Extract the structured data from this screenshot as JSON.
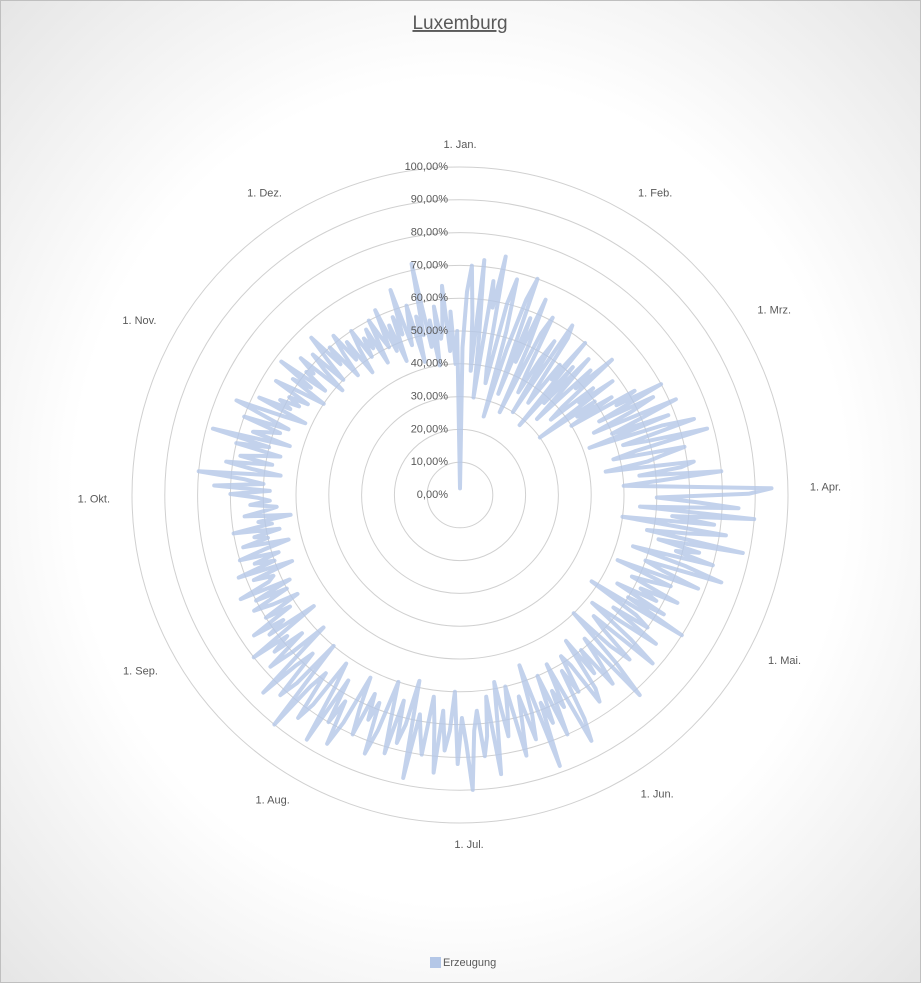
{
  "chart_data": {
    "type": "radar",
    "title": "Luxemburg",
    "categories": [
      "1. Jan.",
      null,
      null,
      null,
      null,
      null,
      null,
      null,
      null,
      null,
      null,
      null,
      null,
      null,
      null,
      null,
      null,
      null,
      null,
      null,
      null,
      null,
      null,
      null,
      null,
      null,
      null,
      null,
      null,
      null,
      null,
      "1. Feb.",
      null,
      null,
      null,
      null,
      null,
      null,
      null,
      null,
      null,
      null,
      null,
      null,
      null,
      null,
      null,
      null,
      null,
      null,
      null,
      null,
      null,
      null,
      null,
      null,
      null,
      null,
      null,
      "1. Mrz.",
      null,
      null,
      null,
      null,
      null,
      null,
      null,
      null,
      null,
      null,
      null,
      null,
      null,
      null,
      null,
      null,
      null,
      null,
      null,
      null,
      null,
      null,
      null,
      null,
      null,
      null,
      null,
      null,
      null,
      null,
      "1. Apr.",
      null,
      null,
      null,
      null,
      null,
      null,
      null,
      null,
      null,
      null,
      null,
      null,
      null,
      null,
      null,
      null,
      null,
      null,
      null,
      null,
      null,
      null,
      null,
      null,
      null,
      null,
      null,
      null,
      null,
      "1. Mai.",
      null,
      null,
      null,
      null,
      null,
      null,
      null,
      null,
      null,
      null,
      null,
      null,
      null,
      null,
      null,
      null,
      null,
      null,
      null,
      null,
      null,
      null,
      null,
      null,
      null,
      null,
      null,
      null,
      null,
      null,
      "1. Jun.",
      null,
      null,
      null,
      null,
      null,
      null,
      null,
      null,
      null,
      null,
      null,
      null,
      null,
      null,
      null,
      null,
      null,
      null,
      null,
      null,
      null,
      null,
      null,
      null,
      null,
      null,
      null,
      null,
      null,
      "1. Jul.",
      null,
      null,
      null,
      null,
      null,
      null,
      null,
      null,
      null,
      null,
      null,
      null,
      null,
      null,
      null,
      null,
      null,
      null,
      null,
      null,
      null,
      null,
      null,
      null,
      null,
      null,
      null,
      null,
      null,
      null,
      "1. Aug.",
      null,
      null,
      null,
      null,
      null,
      null,
      null,
      null,
      null,
      null,
      null,
      null,
      null,
      null,
      null,
      null,
      null,
      null,
      null,
      null,
      null,
      null,
      null,
      null,
      null,
      null,
      null,
      null,
      null,
      null,
      "1. Sep.",
      null,
      null,
      null,
      null,
      null,
      null,
      null,
      null,
      null,
      null,
      null,
      null,
      null,
      null,
      null,
      null,
      null,
      null,
      null,
      null,
      null,
      null,
      null,
      null,
      null,
      null,
      null,
      null,
      null,
      "1. Okt.",
      null,
      null,
      null,
      null,
      null,
      null,
      null,
      null,
      null,
      null,
      null,
      null,
      null,
      null,
      null,
      null,
      null,
      null,
      null,
      null,
      null,
      null,
      null,
      null,
      null,
      null,
      null,
      null,
      null,
      null,
      "1. Nov.",
      null,
      null,
      null,
      null,
      null,
      null,
      null,
      null,
      null,
      null,
      null,
      null,
      null,
      null,
      null,
      null,
      null,
      null,
      null,
      null,
      null,
      null,
      null,
      null,
      null,
      null,
      null,
      null,
      null,
      "1. Dez.",
      null,
      null,
      null,
      null,
      null,
      null,
      null,
      null,
      null,
      null,
      null,
      null,
      null,
      null,
      null,
      null,
      null,
      null,
      null,
      null,
      null,
      null,
      null,
      null,
      null,
      null,
      null,
      null,
      null,
      null
    ],
    "series": [
      {
        "name": "Erzeugung",
        "color": "#b4c7e7",
        "values": [
          2,
          45,
          62,
          70,
          55,
          38,
          72,
          48,
          30,
          66,
          58,
          74,
          40,
          35,
          60,
          68,
          52,
          25,
          47,
          63,
          70,
          33,
          58,
          44,
          65,
          50,
          28,
          55,
          61,
          42,
          36,
          48,
          55,
          30,
          62,
          58,
          40,
          35,
          50,
          45,
          60,
          28,
          52,
          38,
          57,
          44,
          33,
          55,
          48,
          62,
          41,
          36,
          52,
          46,
          58,
          30,
          50,
          43,
          55,
          40,
          62,
          55,
          70,
          48,
          66,
          58,
          45,
          72,
          60,
          50,
          68,
          42,
          65,
          75,
          52,
          60,
          78,
          55,
          48,
          70,
          63,
          58,
          45,
          72,
          68,
          55,
          80,
          62,
          50,
          66,
          95,
          88,
          60,
          72,
          85,
          55,
          90,
          65,
          78,
          50,
          82,
          70,
          58,
          88,
          62,
          75,
          68,
          80,
          55,
          72,
          84,
          60,
          66,
          78,
          52,
          70,
          64,
          58,
          74,
          62,
          68,
          55,
          72,
          60,
          80,
          48,
          65,
          70,
          58,
          75,
          62,
          52,
          68,
          78,
          55,
          60,
          72,
          65,
          50,
          70,
          82,
          58,
          66,
          74,
          60,
          68,
          55,
          72,
          76,
          62,
          58,
          70,
          62,
          78,
          85,
          58,
          72,
          66,
          80,
          60,
          75,
          68,
          88,
          55,
          70,
          78,
          64,
          72,
          82,
          60,
          68,
          75,
          58,
          70,
          86,
          62,
          74,
          80,
          66,
          72,
          90,
          76,
          68,
          82,
          60,
          72,
          78,
          66,
          85,
          70,
          62,
          80,
          74,
          68,
          88,
          58,
          72,
          78,
          65,
          82,
          70,
          60,
          76,
          84,
          68,
          74,
          66,
          80,
          72,
          62,
          78,
          86,
          72,
          80,
          66,
          88,
          70,
          62,
          78,
          84,
          68,
          74,
          90,
          60,
          76,
          82,
          66,
          72,
          85,
          58,
          70,
          78,
          64,
          74,
          68,
          80,
          56,
          72,
          66,
          76,
          62,
          70,
          58,
          66,
          72,
          60,
          70,
          58,
          74,
          64,
          62,
          68,
          55,
          72,
          60,
          66,
          58,
          70,
          62,
          54,
          68,
          60,
          64,
          56,
          70,
          58,
          62,
          52,
          66,
          60,
          56,
          64,
          58,
          62,
          70,
          58,
          75,
          60,
          66,
          80,
          55,
          64,
          72,
          58,
          68,
          62,
          56,
          70,
          60,
          78,
          54,
          66,
          62,
          58,
          70,
          56,
          64,
          74,
          60,
          52,
          68,
          58,
          62,
          56,
          60,
          54,
          66,
          58,
          50,
          62,
          56,
          68,
          52,
          60,
          58,
          64,
          48,
          56,
          62,
          50,
          58,
          66,
          54,
          60,
          48,
          56,
          62,
          52,
          58,
          46,
          54,
          60,
          50,
          56,
          52,
          58,
          46,
          60,
          54,
          50,
          62,
          48,
          56,
          44,
          58,
          52,
          66,
          48,
          54,
          60,
          42,
          56,
          50,
          72,
          46,
          54,
          40,
          58,
          48,
          52,
          64,
          44,
          56,
          40,
          50
        ]
      }
    ],
    "ylim": [
      0,
      100
    ],
    "yticks": [
      {
        "value": 0,
        "label": "0,00%"
      },
      {
        "value": 10,
        "label": "10,00%"
      },
      {
        "value": 20,
        "label": "20,00%"
      },
      {
        "value": 30,
        "label": "30,00%"
      },
      {
        "value": 40,
        "label": "40,00%"
      },
      {
        "value": 50,
        "label": "50,00%"
      },
      {
        "value": 60,
        "label": "60,00%"
      },
      {
        "value": 70,
        "label": "70,00%"
      },
      {
        "value": 80,
        "label": "80,00%"
      },
      {
        "value": 90,
        "label": "90,00%"
      },
      {
        "value": 100,
        "label": "100,00%"
      }
    ],
    "grid": true,
    "legend": "bottom"
  }
}
